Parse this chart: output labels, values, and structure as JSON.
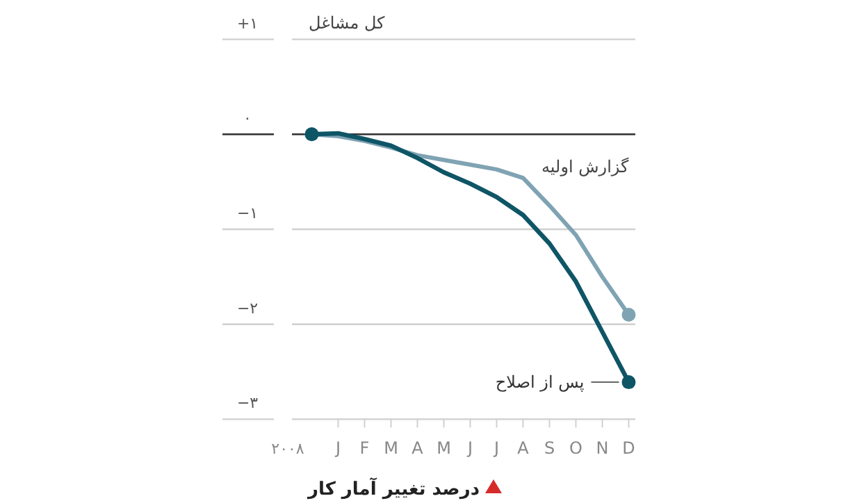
{
  "chart_data": {
    "type": "line",
    "title": "درصد تغییر آمار کار",
    "subtitle": "کل مشاغل",
    "xlabel": "۲۰۰۸",
    "categories": [
      null,
      "J",
      "F",
      "M",
      "A",
      "M",
      "J",
      "J",
      "A",
      "S",
      "O",
      "N",
      "D"
    ],
    "series": [
      {
        "name": "گزارش اولیه",
        "color": "#7fa3b3",
        "values": [
          0,
          -0.02,
          -0.07,
          -0.14,
          -0.22,
          -0.27,
          -0.32,
          -0.37,
          -0.46,
          -0.75,
          -1.06,
          -1.5,
          -1.9
        ]
      },
      {
        "name": "پس از اصلاح",
        "color": "#0e5566",
        "values": [
          0,
          0.01,
          -0.05,
          -0.12,
          -0.25,
          -0.4,
          -0.52,
          -0.66,
          -0.85,
          -1.15,
          -1.55,
          -2.08,
          -2.61
        ]
      }
    ],
    "ylim": [
      -3,
      1
    ],
    "yticks": [
      {
        "value": 1,
        "label": "+۱"
      },
      {
        "value": 0,
        "label": "۰"
      },
      {
        "value": -1,
        "label": "−۱"
      },
      {
        "value": -2,
        "label": "−۲"
      },
      {
        "value": -3,
        "label": "−۳"
      }
    ],
    "ref_lines": [
      {
        "axis": "y",
        "value": 0,
        "color": "#333333"
      }
    ],
    "grid": "y",
    "legend": false,
    "line_style": "solid"
  }
}
